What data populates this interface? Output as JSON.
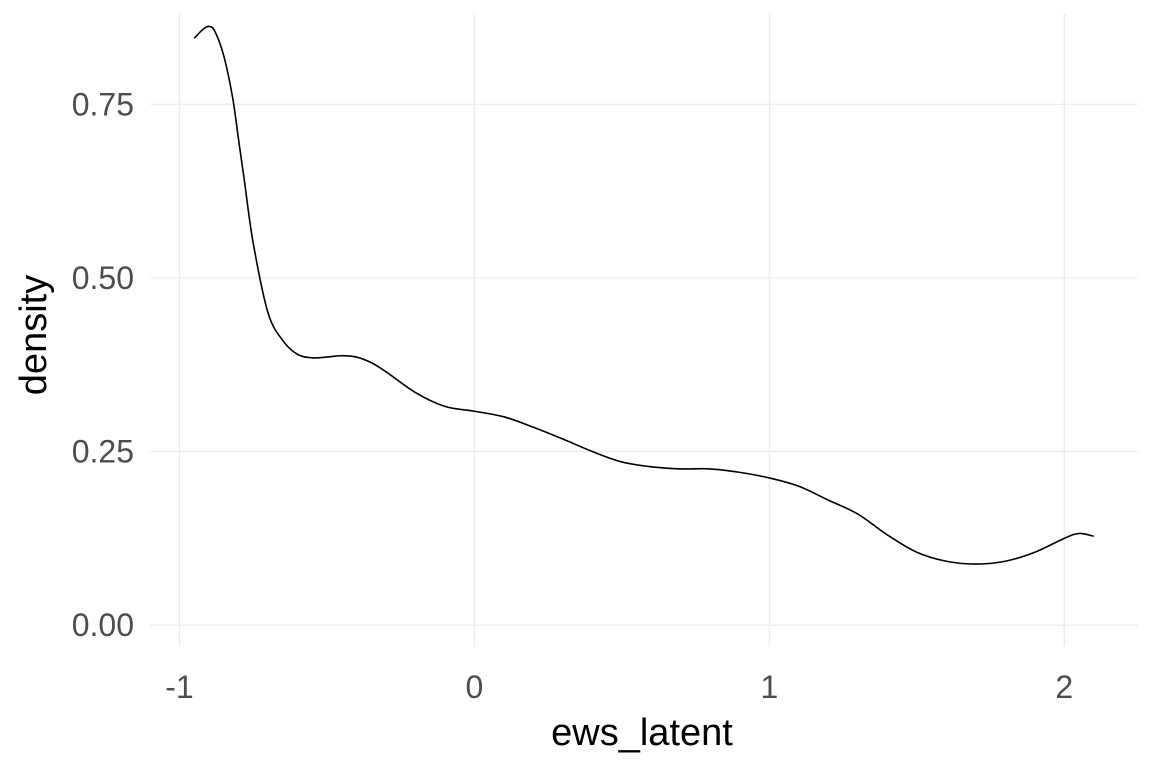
{
  "chart_data": {
    "type": "line",
    "xlabel": "ews_latent",
    "ylabel": "density",
    "xlim": [
      -1.1,
      2.25
    ],
    "ylim": [
      -0.03,
      0.88
    ],
    "x_ticks": [
      -1,
      0,
      1,
      2
    ],
    "x_tick_labels": [
      "-1",
      "0",
      "1",
      "2"
    ],
    "y_ticks": [
      0,
      0.25,
      0.5,
      0.75
    ],
    "y_tick_labels": [
      "0.00",
      "0.25",
      "0.50",
      "0.75"
    ],
    "grid": true,
    "legend": "none",
    "line_color": "#000000",
    "grid_color": "#ebebeb",
    "series": [
      {
        "x": [
          -0.95,
          -0.92,
          -0.9,
          -0.88,
          -0.85,
          -0.82,
          -0.8,
          -0.78,
          -0.75,
          -0.7,
          -0.65,
          -0.6,
          -0.55,
          -0.5,
          -0.45,
          -0.4,
          -0.35,
          -0.3,
          -0.2,
          -0.1,
          0.0,
          0.1,
          0.2,
          0.3,
          0.4,
          0.5,
          0.6,
          0.7,
          0.8,
          0.9,
          1.0,
          1.1,
          1.2,
          1.3,
          1.4,
          1.5,
          1.6,
          1.7,
          1.8,
          1.9,
          2.0,
          2.05,
          2.1
        ],
        "y": [
          0.845,
          0.858,
          0.862,
          0.855,
          0.82,
          0.76,
          0.7,
          0.64,
          0.55,
          0.45,
          0.41,
          0.39,
          0.385,
          0.386,
          0.388,
          0.386,
          0.378,
          0.365,
          0.335,
          0.315,
          0.308,
          0.3,
          0.285,
          0.268,
          0.25,
          0.235,
          0.228,
          0.225,
          0.225,
          0.22,
          0.212,
          0.2,
          0.18,
          0.16,
          0.13,
          0.105,
          0.092,
          0.088,
          0.092,
          0.105,
          0.125,
          0.132,
          0.128
        ]
      }
    ]
  }
}
